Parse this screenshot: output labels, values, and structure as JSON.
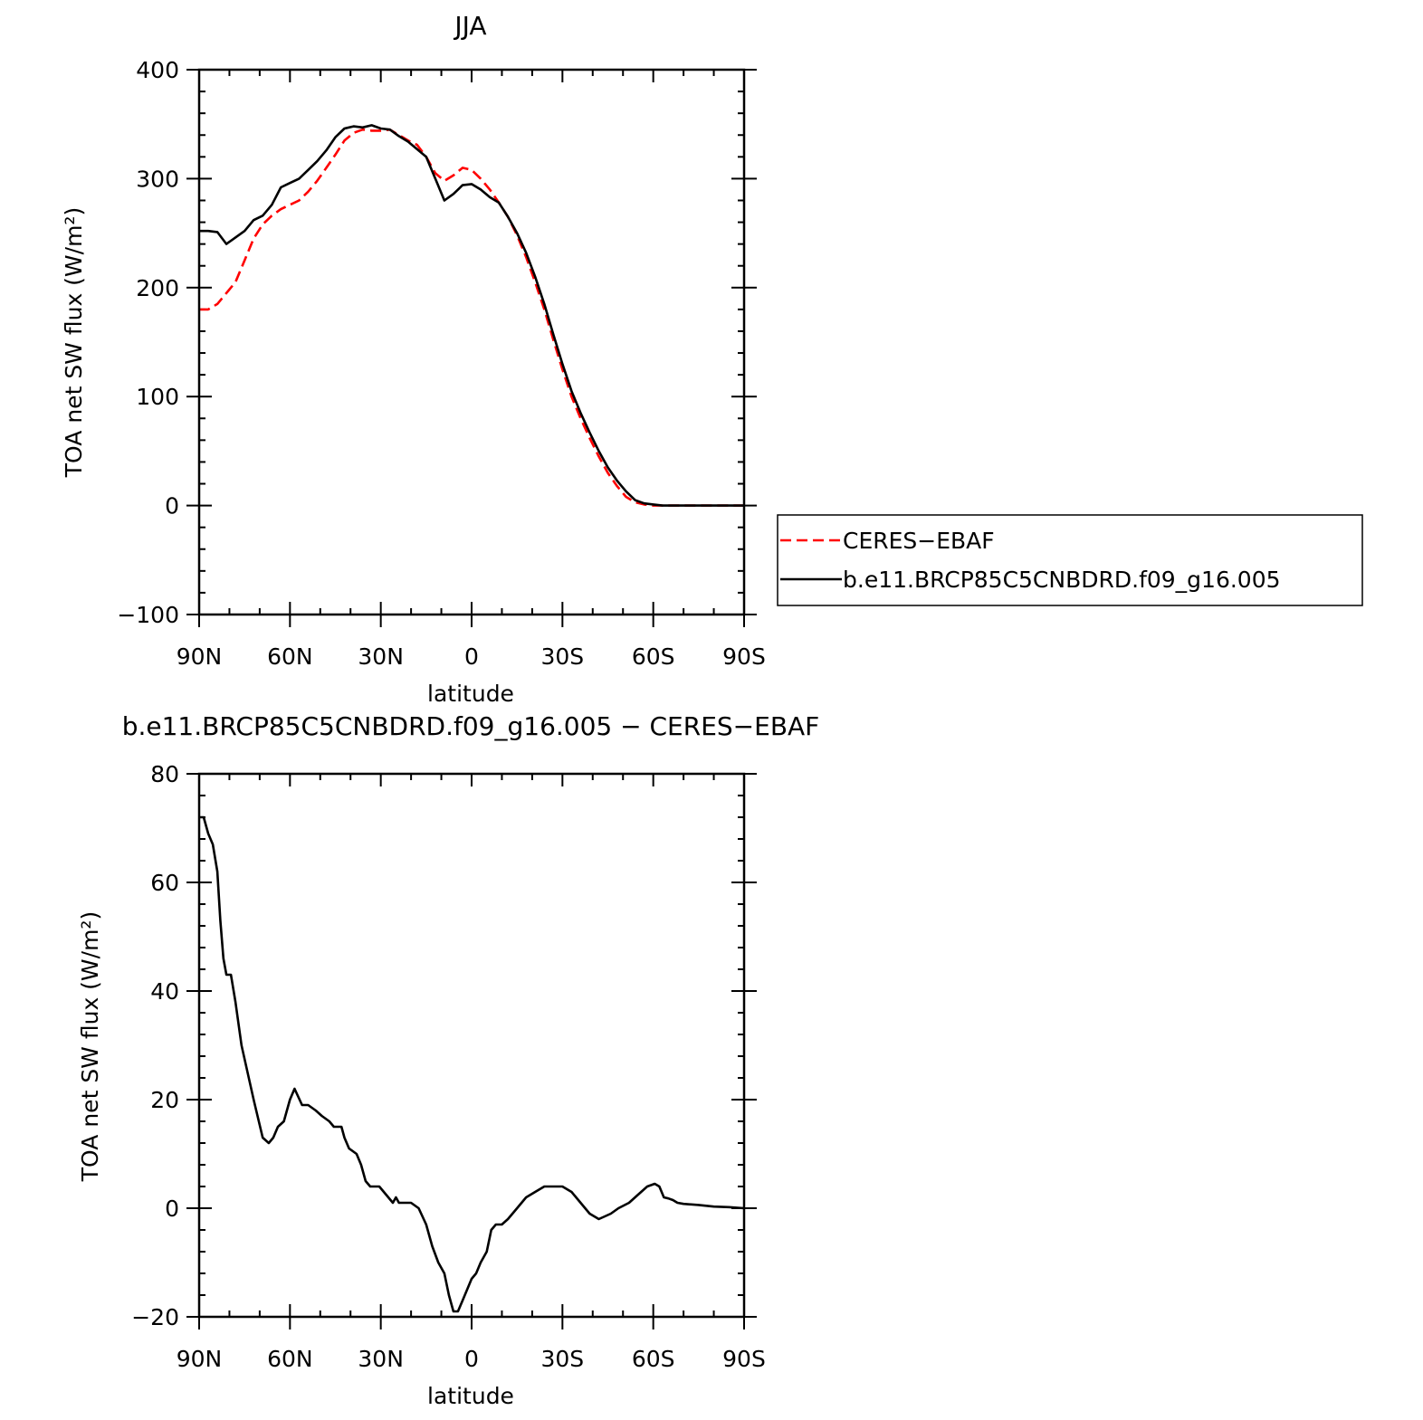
{
  "chart_data": [
    {
      "type": "line",
      "title": "JJA",
      "xlabel": "latitude",
      "ylabel": "TOA net SW flux (W/m²)",
      "xlim": [
        90,
        -90
      ],
      "ylim": [
        -100,
        400
      ],
      "x_major_ticks": [
        90,
        60,
        30,
        0,
        -30,
        -60,
        -90
      ],
      "x_tick_labels": [
        "90N",
        "60N",
        "30N",
        "0",
        "30S",
        "60S",
        "90S"
      ],
      "y_major_ticks": [
        -100,
        0,
        100,
        200,
        300,
        400
      ],
      "y_tick_labels": [
        "−100",
        "0",
        "100",
        "200",
        "300",
        "400"
      ],
      "grid": false,
      "legend": {
        "placement": "right",
        "entries": [
          "CERES−EBAF",
          "b.e11.BRCP85C5CNBDRD.f09_g16.005"
        ]
      },
      "series": [
        {
          "name": "CERES−EBAF",
          "color": "#ff0000",
          "dash": "dashed",
          "x": [
            90,
            87,
            84,
            81,
            78,
            75,
            72,
            69,
            66,
            63,
            60,
            57,
            54,
            51,
            48,
            45,
            42,
            39,
            36,
            33,
            30,
            27,
            24,
            21,
            18,
            15,
            12,
            9,
            6,
            3,
            0,
            -3,
            -6,
            -9,
            -12,
            -15,
            -18,
            -21,
            -24,
            -27,
            -30,
            -33,
            -36,
            -39,
            -42,
            -45,
            -48,
            -51,
            -54,
            -57,
            -60,
            -63,
            -66,
            -69,
            -72,
            -75,
            -78,
            -81,
            -84,
            -87,
            -90
          ],
          "y": [
            180,
            180,
            185,
            195,
            205,
            225,
            245,
            258,
            266,
            272,
            276,
            280,
            288,
            298,
            310,
            322,
            335,
            342,
            345,
            344,
            344,
            345,
            340,
            335,
            331,
            320,
            305,
            298,
            303,
            310,
            308,
            300,
            290,
            278,
            265,
            248,
            228,
            205,
            180,
            152,
            125,
            100,
            80,
            62,
            45,
            30,
            18,
            8,
            3,
            1,
            0,
            0,
            0,
            0,
            0,
            0,
            0,
            0,
            0,
            0,
            0
          ]
        },
        {
          "name": "b.e11.BRCP85C5CNBDRD.f09_g16.005",
          "color": "#000000",
          "dash": "solid",
          "x": [
            90,
            87,
            84,
            81,
            78,
            75,
            72,
            69,
            66,
            63,
            60,
            57,
            54,
            51,
            48,
            45,
            42,
            39,
            36,
            33,
            30,
            27,
            24,
            21,
            18,
            15,
            12,
            9,
            6,
            3,
            0,
            -3,
            -6,
            -9,
            -12,
            -15,
            -18,
            -21,
            -24,
            -27,
            -30,
            -33,
            -36,
            -39,
            -42,
            -45,
            -48,
            -51,
            -54,
            -57,
            -60,
            -63,
            -66,
            -69,
            -72,
            -75,
            -78,
            -81,
            -84,
            -87,
            -90
          ],
          "y": [
            252,
            252,
            251,
            240,
            246,
            252,
            262,
            266,
            276,
            292,
            296,
            300,
            308,
            316,
            326,
            338,
            346,
            348,
            347,
            349,
            346,
            345,
            339,
            334,
            327,
            320,
            300,
            280,
            286,
            294,
            295,
            290,
            283,
            278,
            265,
            250,
            232,
            210,
            185,
            157,
            130,
            105,
            85,
            67,
            50,
            35,
            23,
            13,
            5,
            2,
            1,
            0,
            0,
            0,
            0,
            0,
            0,
            0,
            0,
            0,
            0
          ]
        }
      ]
    },
    {
      "type": "line",
      "title": "b.e11.BRCP85C5CNBDRD.f09_g16.005 − CERES−EBAF",
      "xlabel": "latitude",
      "ylabel": "TOA net SW flux (W/m²)",
      "xlim": [
        90,
        -90
      ],
      "ylim": [
        -20,
        80
      ],
      "x_major_ticks": [
        90,
        60,
        30,
        0,
        -30,
        -60,
        -90
      ],
      "x_tick_labels": [
        "90N",
        "60N",
        "30N",
        "0",
        "30S",
        "60S",
        "90S"
      ],
      "y_major_ticks": [
        -20,
        0,
        20,
        40,
        60,
        80
      ],
      "y_tick_labels": [
        "−20",
        "0",
        "20",
        "40",
        "60",
        "80"
      ],
      "grid": false,
      "series": [
        {
          "color": "#000000",
          "dash": "solid",
          "x": [
            90,
            88.5,
            87,
            85.5,
            84,
            83,
            82,
            81,
            79.5,
            78,
            76,
            72,
            69,
            67,
            65.5,
            64,
            62,
            60,
            58.5,
            56,
            54,
            51.5,
            49.5,
            47,
            45.5,
            43,
            42,
            40.5,
            38,
            36.5,
            35,
            33.5,
            32,
            30.5,
            29,
            27.5,
            26,
            25,
            24,
            22,
            20,
            17.5,
            15,
            13,
            11,
            9,
            7.5,
            6,
            4.5,
            3,
            1.5,
            0,
            -1.5,
            -3,
            -5,
            -6.5,
            -8,
            -10,
            -12,
            -15,
            -18,
            -21,
            -24,
            -27,
            -30,
            -33,
            -36,
            -39,
            -42,
            -44,
            -46,
            -48.5,
            -52,
            -55,
            -58,
            -60.5,
            -62,
            -63.5,
            -65,
            -66.5,
            -68,
            -70,
            -75,
            -80,
            -85,
            -90
          ],
          "y": [
            72,
            72,
            69,
            67,
            62,
            53,
            46,
            43,
            43,
            38,
            30,
            20,
            13,
            12,
            13,
            15,
            16,
            20,
            22,
            19,
            19,
            18,
            17,
            16,
            15,
            15,
            13,
            11,
            10,
            8,
            5,
            4,
            4,
            4,
            3,
            2,
            1,
            2,
            1,
            1,
            1,
            0,
            -3,
            -7,
            -10,
            -12,
            -16,
            -19,
            -19,
            -17,
            -15,
            -13,
            -12,
            -10,
            -8,
            -4,
            -3,
            -3,
            -2,
            0,
            2,
            3,
            4,
            4,
            4,
            3,
            1,
            -1,
            -2,
            -1.5,
            -1,
            0,
            1,
            2.5,
            4,
            4.5,
            4,
            2,
            1.8,
            1.5,
            1,
            0.8,
            0.6,
            0.3,
            0.2,
            0
          ]
        }
      ]
    }
  ]
}
